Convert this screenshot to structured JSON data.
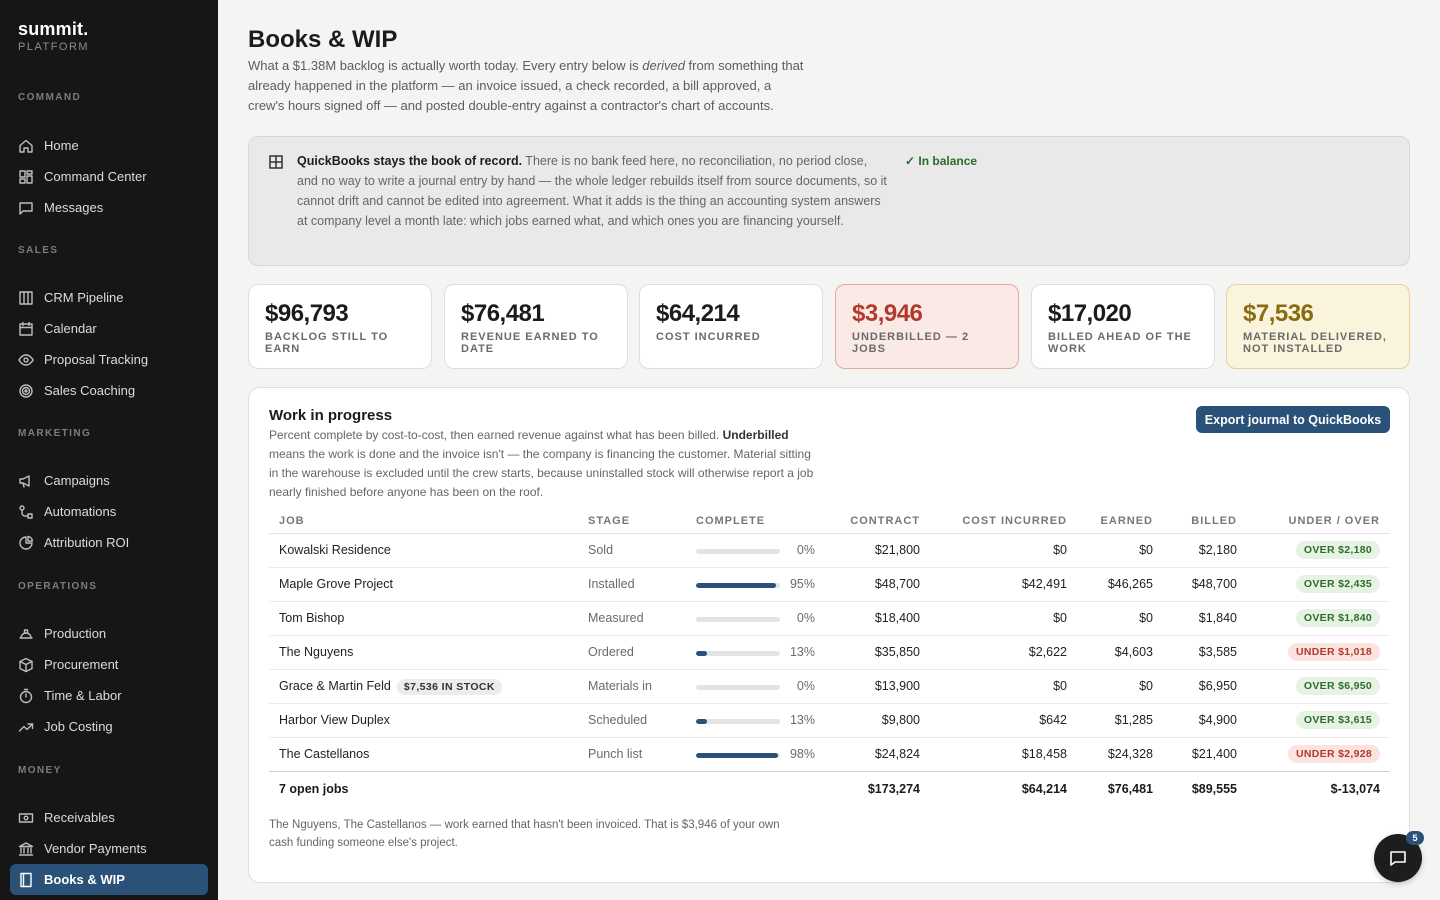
{
  "brand": {
    "name": "summit.",
    "sub": "PLATFORM"
  },
  "nav": {
    "command": {
      "heading": "COMMAND",
      "items": [
        "Home",
        "Command Center",
        "Messages"
      ]
    },
    "sales": {
      "heading": "SALES",
      "items": [
        "CRM Pipeline",
        "Calendar",
        "Proposal Tracking",
        "Sales Coaching"
      ]
    },
    "marketing": {
      "heading": "MARKETING",
      "items": [
        "Campaigns",
        "Automations",
        "Attribution ROI"
      ]
    },
    "operations": {
      "heading": "OPERATIONS",
      "items": [
        "Production",
        "Procurement",
        "Time & Labor",
        "Job Costing"
      ]
    },
    "money": {
      "heading": "MONEY",
      "items": [
        "Receivables",
        "Vendor Payments",
        "Books & WIP"
      ],
      "active": "Books & WIP"
    }
  },
  "page": {
    "title": "Books & WIP",
    "intro_before": "What a $1.38M backlog is actually worth today. Every entry below is ",
    "intro_em": "derived",
    "intro_after": " from something that already happened in the platform — an invoice issued, a check recorded, a bill approved, a crew's hours signed off — and posted double-entry against a contractor's chart of accounts."
  },
  "notice": {
    "bold": "QuickBooks stays the book of record.",
    "text": " There is no bank feed here, no reconciliation, no period close, and no way to write a journal entry by hand — the whole ledger rebuilds itself from source documents, so it cannot drift and cannot be edited into agreement. What it adds is the thing an accounting system answers at company level a month late: which jobs earned what, and which ones you are financing yourself.",
    "status": "✓ In balance"
  },
  "kpis": [
    {
      "value": "$96,793",
      "label": "BACKLOG STILL TO EARN",
      "tone": "neutral"
    },
    {
      "value": "$76,481",
      "label": "REVENUE EARNED TO DATE",
      "tone": "neutral"
    },
    {
      "value": "$64,214",
      "label": "COST INCURRED",
      "tone": "neutral"
    },
    {
      "value": "$3,946",
      "label": "UNDERBILLED — 2 JOBS",
      "tone": "red"
    },
    {
      "value": "$17,020",
      "label": "BILLED AHEAD OF THE WORK",
      "tone": "neutral"
    },
    {
      "value": "$7,536",
      "label": "MATERIAL DELIVERED, NOT INSTALLED",
      "tone": "yellow"
    }
  ],
  "wip": {
    "title": "Work in progress",
    "desc_before": "Percent complete by cost-to-cost, then earned revenue against what has been billed. ",
    "desc_bold": "Underbilled",
    "desc_after": " means the work is done and the invoice isn't — the company is financing the customer. Material sitting in the warehouse is excluded until the crew starts, because uninstalled stock will otherwise report a job nearly finished before anyone has been on the roof.",
    "export_label": "Export journal to QuickBooks",
    "columns": [
      "JOB",
      "STAGE",
      "COMPLETE",
      "CONTRACT",
      "COST INCURRED",
      "EARNED",
      "BILLED",
      "UNDER / OVER"
    ],
    "rows": [
      {
        "job": "Kowalski Residence",
        "tag": "",
        "stage": "Sold",
        "complete": 0,
        "complete_label": "0%",
        "contract": "$21,800",
        "cost": "$0",
        "earned": "$0",
        "billed": "$2,180",
        "badge": "OVER $2,180",
        "badge_type": "over"
      },
      {
        "job": "Maple Grove Project",
        "tag": "",
        "stage": "Installed",
        "complete": 95,
        "complete_label": "95%",
        "contract": "$48,700",
        "cost": "$42,491",
        "earned": "$46,265",
        "billed": "$48,700",
        "badge": "OVER $2,435",
        "badge_type": "over"
      },
      {
        "job": "Tom Bishop",
        "tag": "",
        "stage": "Measured",
        "complete": 0,
        "complete_label": "0%",
        "contract": "$18,400",
        "cost": "$0",
        "earned": "$0",
        "billed": "$1,840",
        "badge": "OVER $1,840",
        "badge_type": "over"
      },
      {
        "job": "The Nguyens",
        "tag": "",
        "stage": "Ordered",
        "complete": 13,
        "complete_label": "13%",
        "contract": "$35,850",
        "cost": "$2,622",
        "earned": "$4,603",
        "billed": "$3,585",
        "badge": "UNDER $1,018",
        "badge_type": "under"
      },
      {
        "job": "Grace & Martin Feld",
        "tag": "$7,536 IN STOCK",
        "stage": "Materials in",
        "complete": 0,
        "complete_label": "0%",
        "contract": "$13,900",
        "cost": "$0",
        "earned": "$0",
        "billed": "$6,950",
        "badge": "OVER $6,950",
        "badge_type": "over"
      },
      {
        "job": "Harbor View Duplex",
        "tag": "",
        "stage": "Scheduled",
        "complete": 13,
        "complete_label": "13%",
        "contract": "$9,800",
        "cost": "$642",
        "earned": "$1,285",
        "billed": "$4,900",
        "badge": "OVER $3,615",
        "badge_type": "over"
      },
      {
        "job": "The Castellanos",
        "tag": "",
        "stage": "Punch list",
        "complete": 98,
        "complete_label": "98%",
        "contract": "$24,824",
        "cost": "$18,458",
        "earned": "$24,328",
        "billed": "$21,400",
        "badge": "UNDER $2,928",
        "badge_type": "under"
      }
    ],
    "totals": {
      "label": "7 open jobs",
      "contract": "$173,274",
      "cost": "$64,214",
      "earned": "$76,481",
      "billed": "$89,555",
      "net": "$-13,074"
    },
    "footnote": "The Nguyens, The Castellanos — work earned that hasn't been invoiced. That is $3,946 of your own cash funding someone else's project."
  },
  "chat": {
    "count": "5"
  },
  "colors": {
    "accent": "#2a5278",
    "sidebar": "#161616",
    "over": "#2d6e2d",
    "under": "#b33a2b"
  }
}
